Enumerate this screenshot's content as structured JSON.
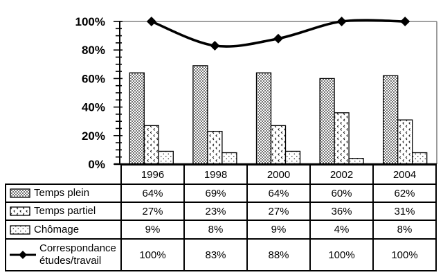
{
  "chart_data": {
    "type": "combo bar+line",
    "categories": [
      "1996",
      "1998",
      "2000",
      "2002",
      "2004"
    ],
    "series": [
      {
        "name": "Temps plein",
        "type": "bar",
        "pattern": "dense-dot-fill",
        "values": [
          64,
          69,
          64,
          60,
          62
        ]
      },
      {
        "name": "Temps partiel",
        "type": "bar",
        "pattern": "chevron-fill",
        "values": [
          27,
          23,
          27,
          36,
          31
        ]
      },
      {
        "name": "Chômage",
        "type": "bar",
        "pattern": "sparse-dot-fill",
        "values": [
          9,
          8,
          9,
          4,
          8
        ]
      },
      {
        "name": "Correspondance études/travail",
        "type": "line",
        "marker": "diamond",
        "values": [
          100,
          83,
          88,
          100,
          100
        ]
      }
    ],
    "ylim": [
      0,
      100
    ],
    "ytick_step": 20,
    "yminor_step": 5,
    "ytick_labels": [
      "0%",
      "20%",
      "40%",
      "60%",
      "80%",
      "100%"
    ],
    "grid": "single horizontal gridline at 100% only",
    "legend_position": "left column of data table below chart",
    "colors": {
      "background": "#ffffff",
      "bar_outline": "#000000",
      "bar_fill": "black pattern on white",
      "line": "#000000",
      "gridline": "#808080",
      "plot_right_border": "#808080",
      "axis": "#000000",
      "text": "#000000"
    }
  },
  "table": {
    "corner": "",
    "column_headers": [
      "1996",
      "1998",
      "2000",
      "2002",
      "2004"
    ],
    "rows": [
      {
        "label": "Temps plein",
        "swatch_icon": "dense-dot-swatch",
        "values": [
          "64%",
          "69%",
          "64%",
          "60%",
          "62%"
        ]
      },
      {
        "label": "Temps partiel",
        "swatch_icon": "chevron-swatch",
        "values": [
          "27%",
          "23%",
          "27%",
          "36%",
          "31%"
        ]
      },
      {
        "label": "Chômage",
        "swatch_icon": "sparse-dot-swatch",
        "values": [
          "9%",
          "8%",
          "9%",
          "4%",
          "8%"
        ]
      },
      {
        "label": "Correspondance études/travail",
        "swatch_icon": "line-diamond-swatch",
        "values": [
          "100%",
          "83%",
          "88%",
          "100%",
          "100%"
        ]
      }
    ]
  }
}
